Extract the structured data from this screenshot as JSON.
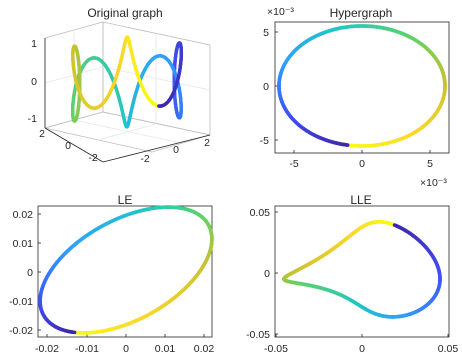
{
  "colormap": [
    "#3e26a8",
    "#3f4ff5",
    "#2f9ffe",
    "#1fc8c4",
    "#5dd268",
    "#c8c12e",
    "#f9d52b",
    "#f9fb15"
  ],
  "chart_data": [
    {
      "id": "original",
      "type": "line",
      "title": "Original graph",
      "curve": "3D twisted closed loop colored by parameter",
      "x_ticks": [
        "2",
        "0",
        "-2"
      ],
      "y_ticks": [
        "-2",
        "0",
        "2"
      ],
      "z_ticks": [
        "1",
        "0",
        "-1"
      ],
      "xlim": [
        -3,
        3
      ],
      "ylim": [
        -3,
        3
      ],
      "zlim": [
        -1,
        1
      ]
    },
    {
      "id": "hypergraph",
      "type": "line",
      "title": "Hypergraph",
      "x_ticks": [
        "-5",
        "0",
        "5"
      ],
      "y_ticks": [
        "5",
        "0",
        "-5"
      ],
      "x_exponent": "×10⁻³",
      "y_exponent": "×10⁻³",
      "xlim": [
        -6.7,
        6.7
      ],
      "ylim": [
        -6.2,
        6.2
      ],
      "ellipse": {
        "cx": 0,
        "cy": 0,
        "rx": 6.2,
        "ry": 5.6
      }
    },
    {
      "id": "le",
      "type": "line",
      "title": "LE",
      "x_ticks": [
        "-0.02",
        "-0.01",
        "0",
        "0.01",
        "0.02"
      ],
      "y_ticks": [
        "0.02",
        "0.01",
        "0",
        "-0.01",
        "-0.02"
      ],
      "xlim": [
        -0.0235,
        0.0225
      ],
      "ylim": [
        -0.0245,
        0.0225
      ]
    },
    {
      "id": "lle",
      "type": "line",
      "title": "LLE",
      "x_ticks": [
        "-0.05",
        "0",
        "0.05"
      ],
      "y_ticks": [
        "0.05",
        "0",
        "-0.05"
      ],
      "xlim": [
        -0.05,
        0.05
      ],
      "ylim": [
        -0.052,
        0.052
      ]
    }
  ]
}
